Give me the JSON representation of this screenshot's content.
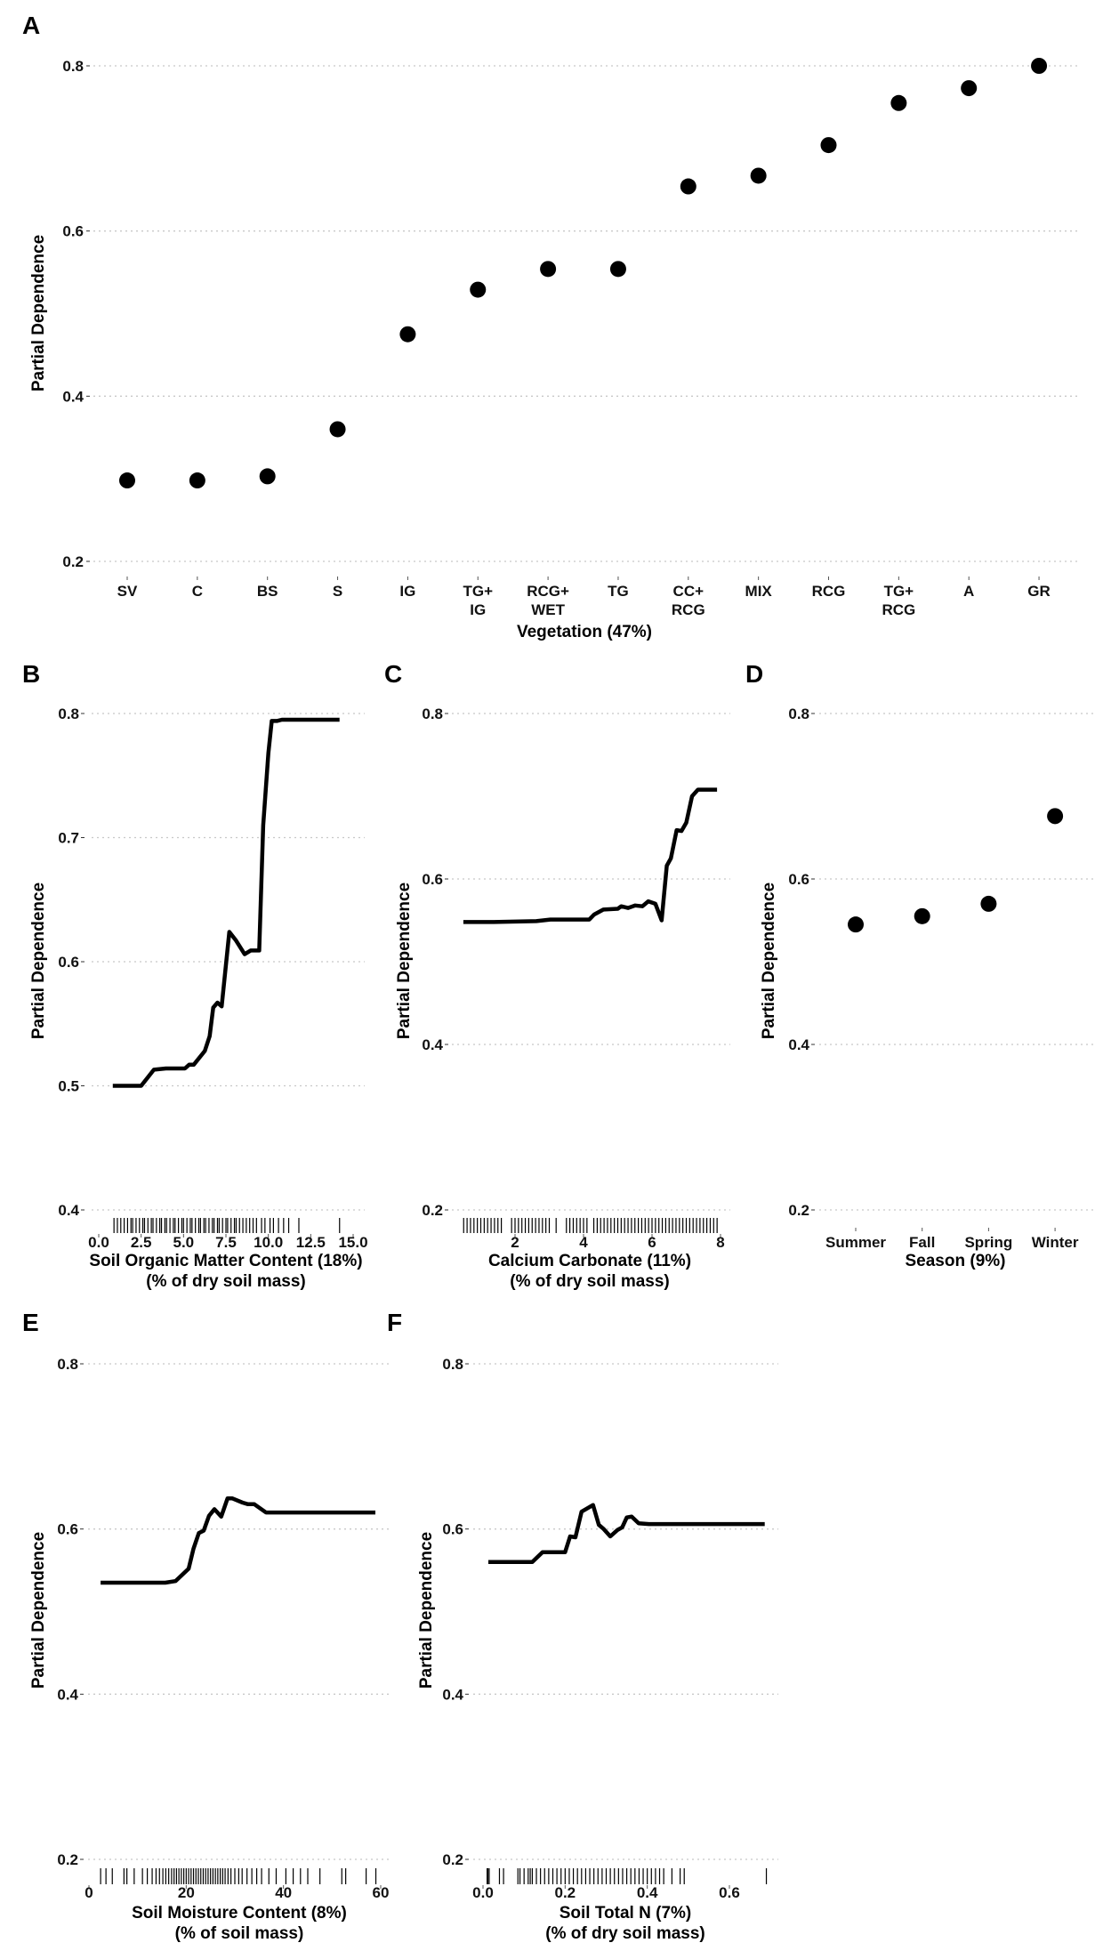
{
  "chart_data": [
    {
      "panel": "A",
      "type": "scatter",
      "xlabel": "Vegetation (47%)",
      "ylabel": "Partial Dependence",
      "categories": [
        [
          "SV"
        ],
        [
          "C"
        ],
        [
          "BS"
        ],
        [
          "S"
        ],
        [
          "IG"
        ],
        [
          "TG+",
          "IG"
        ],
        [
          "RCG+",
          "WET"
        ],
        [
          "TG"
        ],
        [
          "CC+",
          "RCG"
        ],
        [
          "MIX"
        ],
        [
          "RCG"
        ],
        [
          "TG+",
          "RCG"
        ],
        [
          "A"
        ],
        [
          "GR"
        ]
      ],
      "values": [
        0.298,
        0.298,
        0.303,
        0.36,
        0.475,
        0.529,
        0.554,
        0.554,
        0.654,
        0.667,
        0.704,
        0.755,
        0.773,
        0.8
      ],
      "ylim": [
        0.2,
        0.8
      ],
      "yticks": [
        "0.2",
        "0.4",
        "0.6",
        "0.8"
      ],
      "grid": true
    },
    {
      "panel": "B",
      "type": "line",
      "xlabel": "Soil Organic Matter Content (18%)",
      "xlabel2": "(% of dry soil mass)",
      "ylabel": "Partial Dependence",
      "xticks": [
        "0.0",
        "2.5",
        "5.0",
        "7.5",
        "10.0",
        "12.5",
        "15.0"
      ],
      "xtick_values": [
        0,
        2.5,
        5,
        7.5,
        10,
        12.5,
        15
      ],
      "yticks": [
        "0.4",
        "0.5",
        "0.6",
        "0.7",
        "0.8"
      ],
      "ylim": [
        0.4,
        0.8
      ],
      "x": [
        0.83,
        2.5,
        3.25,
        3.96,
        5.08,
        5.33,
        5.6,
        6.25,
        6.54,
        6.75,
        7.0,
        7.25,
        7.7,
        8.1,
        8.6,
        8.96,
        9.46,
        9.7,
        10.0,
        10.2,
        10.5,
        10.8,
        14.2
      ],
      "y": [
        0.5,
        0.5,
        0.513,
        0.514,
        0.514,
        0.517,
        0.517,
        0.528,
        0.54,
        0.563,
        0.567,
        0.564,
        0.624,
        0.617,
        0.606,
        0.609,
        0.609,
        0.71,
        0.768,
        0.794,
        0.794,
        0.795,
        0.795
      ],
      "rug": [
        0.9,
        1.1,
        1.3,
        1.5,
        1.7,
        1.9,
        2.0,
        2.2,
        2.4,
        2.6,
        2.7,
        2.9,
        3.1,
        3.2,
        3.4,
        3.6,
        3.7,
        3.9,
        4.0,
        4.2,
        4.4,
        4.5,
        4.7,
        4.9,
        5.0,
        5.2,
        5.4,
        5.5,
        5.7,
        5.9,
        6.0,
        6.2,
        6.3,
        6.5,
        6.7,
        6.8,
        7.0,
        7.1,
        7.3,
        7.5,
        7.6,
        7.8,
        8.0,
        8.1,
        8.3,
        8.5,
        8.7,
        8.9,
        9.1,
        9.3,
        9.6,
        9.8,
        10.1,
        10.3,
        10.6,
        10.9,
        11.2,
        11.8,
        14.2
      ]
    },
    {
      "panel": "C",
      "type": "line",
      "xlabel": "Calcium Carbonate (11%)",
      "xlabel2": "(% of dry soil mass)",
      "ylabel": "Partial Dependence",
      "xticks": [
        "2",
        "4",
        "6",
        "8"
      ],
      "xtick_values": [
        2,
        4,
        6,
        8
      ],
      "yticks": [
        "0.2",
        "0.4",
        "0.6",
        "0.8"
      ],
      "ylim": [
        0.2,
        0.8
      ],
      "x": [
        0.49,
        1.38,
        2.62,
        3.03,
        4.17,
        4.31,
        4.58,
        5.0,
        5.1,
        5.3,
        5.51,
        5.72,
        5.89,
        6.1,
        6.28,
        6.43,
        6.55,
        6.72,
        6.86,
        7.0,
        7.17,
        7.34,
        7.9
      ],
      "y": [
        0.548,
        0.548,
        0.549,
        0.551,
        0.551,
        0.557,
        0.563,
        0.564,
        0.567,
        0.565,
        0.568,
        0.567,
        0.573,
        0.57,
        0.55,
        0.616,
        0.625,
        0.659,
        0.658,
        0.668,
        0.7,
        0.708,
        0.708
      ],
      "rug": [
        0.5,
        0.6,
        0.7,
        0.8,
        0.9,
        1.0,
        1.1,
        1.2,
        1.3,
        1.4,
        1.5,
        1.6,
        1.9,
        2.0,
        2.1,
        2.2,
        2.3,
        2.4,
        2.5,
        2.6,
        2.7,
        2.8,
        2.9,
        3.0,
        3.2,
        3.5,
        3.6,
        3.7,
        3.8,
        3.9,
        4.0,
        4.1,
        4.3,
        4.4,
        4.5,
        4.6,
        4.7,
        4.8,
        4.9,
        5.0,
        5.1,
        5.2,
        5.3,
        5.4,
        5.5,
        5.6,
        5.7,
        5.8,
        5.9,
        6.0,
        6.1,
        6.2,
        6.3,
        6.4,
        6.5,
        6.6,
        6.7,
        6.8,
        6.9,
        7.0,
        7.1,
        7.2,
        7.3,
        7.4,
        7.5,
        7.6,
        7.7,
        7.8,
        7.9
      ]
    },
    {
      "panel": "D",
      "type": "scatter",
      "xlabel": "Season (9%)",
      "ylabel": "Partial Dependence",
      "categories": [
        [
          "Summer"
        ],
        [
          "Fall"
        ],
        [
          "Spring"
        ],
        [
          "Winter"
        ]
      ],
      "values": [
        0.545,
        0.555,
        0.57,
        0.676
      ],
      "ylim": [
        0.2,
        0.8
      ],
      "yticks": [
        "0.2",
        "0.4",
        "0.6",
        "0.8"
      ]
    },
    {
      "panel": "E",
      "type": "line",
      "xlabel": "Soil Moisture Content (8%)",
      "xlabel2": "(% of soil mass)",
      "ylabel": "Partial Dependence",
      "xticks": [
        "0",
        "20",
        "40",
        "60"
      ],
      "xtick_values": [
        0,
        20,
        40,
        60
      ],
      "yticks": [
        "0.2",
        "0.4",
        "0.6",
        "0.8"
      ],
      "ylim": [
        0.2,
        0.8
      ],
      "x": [
        2.4,
        15.7,
        17.8,
        20.5,
        21.5,
        22.6,
        23.6,
        24.7,
        25.8,
        27.2,
        28.5,
        29.5,
        31.6,
        32.7,
        34,
        36.4,
        58.9
      ],
      "y": [
        0.535,
        0.535,
        0.537,
        0.552,
        0.576,
        0.595,
        0.598,
        0.616,
        0.624,
        0.615,
        0.637,
        0.637,
        0.632,
        0.63,
        0.63,
        0.62,
        0.62
      ],
      "rug": [
        2.4,
        3.5,
        4.8,
        7.2,
        7.8,
        9.3,
        11,
        12,
        13,
        13.8,
        14.5,
        15.2,
        15.8,
        16.4,
        17,
        17.5,
        18,
        18.5,
        19,
        19.5,
        20,
        20.5,
        21,
        21.5,
        22,
        22.5,
        23,
        23.5,
        24,
        24.5,
        25,
        25.5,
        26,
        26.5,
        27,
        27.5,
        28,
        28.6,
        29.2,
        30,
        30.8,
        31.5,
        32.5,
        33.5,
        34.5,
        35.5,
        37,
        38.5,
        40.5,
        42,
        43.5,
        45,
        47.5,
        52,
        52.8,
        57,
        59
      ]
    },
    {
      "panel": "F",
      "type": "line",
      "xlabel": "Soil Total N (7%)",
      "xlabel2": "(% of dry soil mass)",
      "ylabel": "Partial Dependence",
      "xticks": [
        "0.0",
        "0.2",
        "0.4",
        "0.6"
      ],
      "xtick_values": [
        0,
        0.2,
        0.4,
        0.6
      ],
      "yticks": [
        "0.2",
        "0.4",
        "0.6",
        "0.8"
      ],
      "ylim": [
        0.2,
        0.8
      ],
      "x": [
        0.013,
        0.12,
        0.145,
        0.2,
        0.212,
        0.225,
        0.24,
        0.268,
        0.282,
        0.294,
        0.31,
        0.328,
        0.339,
        0.35,
        0.362,
        0.379,
        0.404,
        0.686
      ],
      "y": [
        0.56,
        0.56,
        0.572,
        0.572,
        0.591,
        0.59,
        0.621,
        0.629,
        0.605,
        0.6,
        0.591,
        0.599,
        0.602,
        0.614,
        0.615,
        0.607,
        0.606,
        0.606
      ],
      "rug": [
        0.01,
        0.012,
        0.015,
        0.04,
        0.05,
        0.085,
        0.09,
        0.1,
        0.11,
        0.115,
        0.12,
        0.13,
        0.14,
        0.15,
        0.16,
        0.17,
        0.18,
        0.19,
        0.2,
        0.21,
        0.22,
        0.23,
        0.24,
        0.25,
        0.26,
        0.27,
        0.28,
        0.29,
        0.3,
        0.31,
        0.32,
        0.33,
        0.34,
        0.35,
        0.36,
        0.37,
        0.38,
        0.39,
        0.4,
        0.41,
        0.42,
        0.43,
        0.44,
        0.46,
        0.48,
        0.49,
        0.69
      ]
    }
  ]
}
